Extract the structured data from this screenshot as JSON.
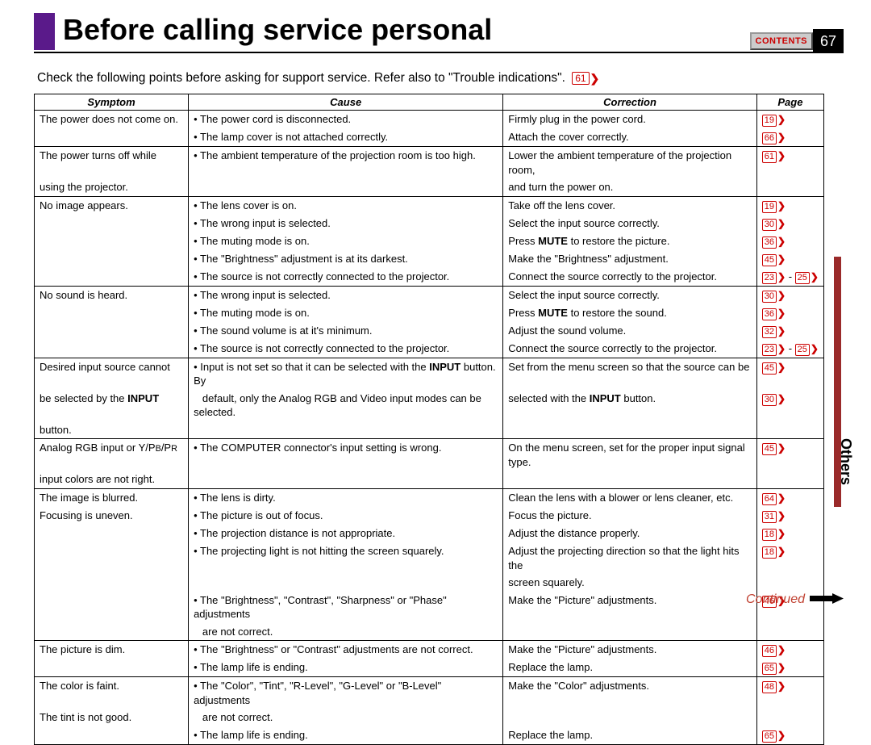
{
  "title": "Before calling service personal",
  "contents_label": "CONTENTS",
  "page_number": "67",
  "intro_text": "Check the following points before asking for support service. Refer also to \"Trouble indications\".",
  "intro_ref": "61",
  "side_tab": "Others",
  "continued": "Continued",
  "columns": [
    "Symptom",
    "Cause",
    "Correction",
    "Page"
  ],
  "rows": [
    {
      "s": "The power does not come on.",
      "c": "• The power cord is disconnected.",
      "r": "Firmly plug in the power cord.",
      "p": [
        "19"
      ],
      "sep": false
    },
    {
      "s": "",
      "c": "• The lamp cover is not attached correctly.",
      "r": "Attach the cover correctly.",
      "p": [
        "66"
      ],
      "sep": true
    },
    {
      "s": "The power turns off while",
      "c": "• The ambient temperature of the projection room is too high.",
      "r": "Lower the ambient temperature of the projection room,",
      "p": [
        "61"
      ],
      "sep": false
    },
    {
      "s": "using the projector.",
      "c": "",
      "r": "and turn the power on.",
      "p": [],
      "sep": true
    },
    {
      "s": "No image appears.",
      "c": "• The lens cover is on.",
      "r": "Take off the lens cover.",
      "p": [
        "19"
      ],
      "sep": false
    },
    {
      "s": "",
      "c": "• The wrong input is selected.",
      "r": "Select the input source correctly.",
      "p": [
        "30"
      ],
      "sep": false
    },
    {
      "s": "",
      "c": "• The muting mode is on.",
      "r": "Press <b>MUTE</b> to restore the picture.",
      "p": [
        "36"
      ],
      "sep": false
    },
    {
      "s": "",
      "c": "• The \"Brightness\" adjustment is at its darkest.",
      "r": "Make the \"Brightness\" adjustment.",
      "p": [
        "45"
      ],
      "sep": false
    },
    {
      "s": "",
      "c": "• The source is not correctly connected to the projector.",
      "r": "Connect the source correctly to the projector.",
      "p": [
        "23",
        "25"
      ],
      "sep": true
    },
    {
      "s": "No sound is heard.",
      "c": "• The wrong input is selected.",
      "r": "Select the input source correctly.",
      "p": [
        "30"
      ],
      "sep": false
    },
    {
      "s": "",
      "c": "• The muting mode is on.",
      "r": "Press <b>MUTE</b> to restore the sound.",
      "p": [
        "36"
      ],
      "sep": false
    },
    {
      "s": "",
      "c": "• The sound volume is at it's minimum.",
      "r": "Adjust the sound volume.",
      "p": [
        "32"
      ],
      "sep": false
    },
    {
      "s": "",
      "c": "• The source is not correctly connected to the projector.",
      "r": "Connect the source correctly to the projector.",
      "p": [
        "23",
        "25"
      ],
      "sep": true
    },
    {
      "s": "Desired input source cannot",
      "c": "• Input is not set so that it can be selected with the <b>INPUT</b> button. By",
      "r": "Set from the menu screen so that the source can be",
      "p": [
        "45"
      ],
      "sep": false
    },
    {
      "s": "be selected by the <b>INPUT</b>",
      "c": "&nbsp;&nbsp;&nbsp;default, only the Analog RGB and Video input modes can be selected.",
      "r": "selected with the <b>INPUT</b> button.",
      "p": [
        "30"
      ],
      "sep": false
    },
    {
      "s": "button.",
      "c": "",
      "r": "",
      "p": [],
      "sep": true
    },
    {
      "s": "Analog RGB input or Y/P<small>B</small>/P<small>R</small>",
      "c": "• The COMPUTER connector's input setting is wrong.",
      "r": "On the menu screen, set for the proper input signal type.",
      "p": [
        "45"
      ],
      "sep": false
    },
    {
      "s": "input colors are not right.",
      "c": "",
      "r": "",
      "p": [],
      "sep": true
    },
    {
      "s": "The image is blurred.",
      "c": "• The lens is dirty.",
      "r": "Clean the lens with a blower or lens cleaner, etc.",
      "p": [
        "64"
      ],
      "sep": false
    },
    {
      "s": "Focusing is uneven.",
      "c": "• The picture is out of focus.",
      "r": "Focus the picture.",
      "p": [
        "31"
      ],
      "sep": false
    },
    {
      "s": "",
      "c": "• The projection distance is not appropriate.",
      "r": "Adjust the distance properly.",
      "p": [
        "18"
      ],
      "sep": false
    },
    {
      "s": "",
      "c": "• The projecting light is not hitting the screen squarely.",
      "r": "Adjust the projecting direction so that the light hits the",
      "p": [
        "18"
      ],
      "sep": false
    },
    {
      "s": "",
      "c": "",
      "r": "screen squarely.",
      "p": [],
      "sep": false
    },
    {
      "s": "",
      "c": "• The \"Brightness\", \"Contrast\", \"Sharpness\" or \"Phase\" adjustments",
      "r": "Make the \"Picture\" adjustments.",
      "p": [
        "46"
      ],
      "sep": false
    },
    {
      "s": "",
      "c": "&nbsp;&nbsp;&nbsp;are not correct.",
      "r": "",
      "p": [],
      "sep": true
    },
    {
      "s": "The picture is dim.",
      "c": "• The \"Brightness\" or \"Contrast\" adjustments are not correct.",
      "r": "Make the \"Picture\" adjustments.",
      "p": [
        "46"
      ],
      "sep": false
    },
    {
      "s": "",
      "c": "• The lamp life is ending.",
      "r": "Replace the lamp.",
      "p": [
        "65"
      ],
      "sep": true
    },
    {
      "s": "The color is faint.",
      "c": "• The \"Color\", \"Tint\", \"R-Level\", \"G-Level\" or \"B-Level\" adjustments",
      "r": "Make the \"Color\" adjustments.",
      "p": [
        "48"
      ],
      "sep": false
    },
    {
      "s": "The tint is not good.",
      "c": "&nbsp;&nbsp;&nbsp;are not correct.",
      "r": "",
      "p": [],
      "sep": false
    },
    {
      "s": "",
      "c": "• The lamp life is ending.",
      "r": "Replace the lamp.",
      "p": [
        "65"
      ],
      "sep": true
    }
  ]
}
